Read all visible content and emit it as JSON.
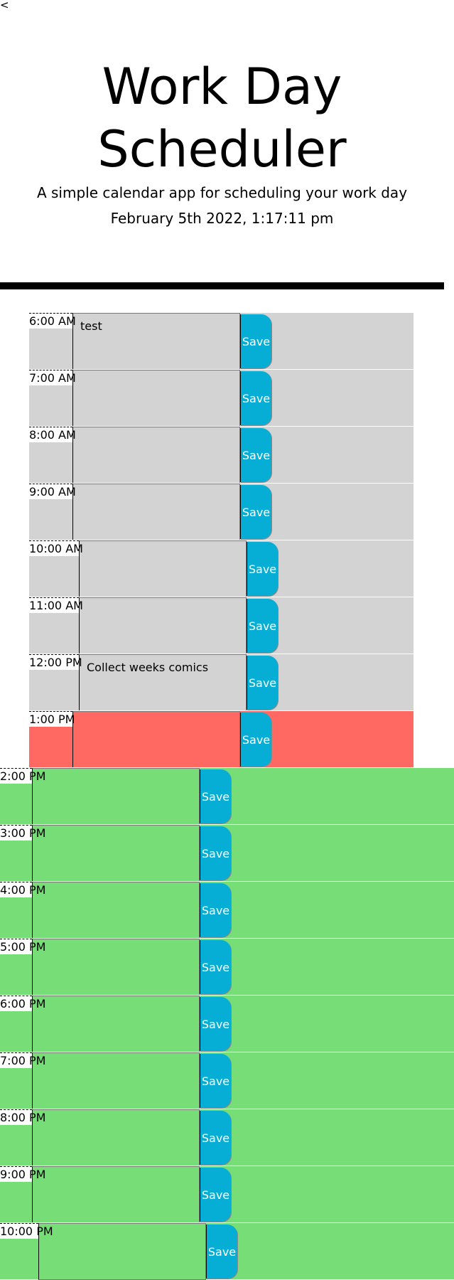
{
  "header": {
    "back": "<",
    "title": "Work Day Scheduler",
    "subtitle": "A simple calendar app for scheduling your work day",
    "date_time": "February 5th 2022, 1:17:11 pm"
  },
  "save_label": "Save",
  "colors": {
    "past": "#d3d3d3",
    "present": "#ff6961",
    "future": "#77dd77",
    "save": "#06aed5"
  },
  "rows": [
    {
      "hour": "6:00 AM",
      "text": "test",
      "state": "past"
    },
    {
      "hour": "7:00 AM",
      "text": "",
      "state": "past"
    },
    {
      "hour": "8:00 AM",
      "text": "",
      "state": "past"
    },
    {
      "hour": "9:00 AM",
      "text": "",
      "state": "past"
    },
    {
      "hour": "10:00 AM",
      "text": "",
      "state": "past"
    },
    {
      "hour": "11:00 AM",
      "text": "",
      "state": "past"
    },
    {
      "hour": "12:00 PM",
      "text": "Collect weeks comics",
      "state": "past"
    },
    {
      "hour": "1:00 PM",
      "text": "",
      "state": "present"
    },
    {
      "hour": "2:00 PM",
      "text": "",
      "state": "future"
    },
    {
      "hour": "3:00 PM",
      "text": "",
      "state": "future"
    },
    {
      "hour": "4:00 PM",
      "text": "",
      "state": "future"
    },
    {
      "hour": "5:00 PM",
      "text": "",
      "state": "future"
    },
    {
      "hour": "6:00 PM",
      "text": "",
      "state": "future"
    },
    {
      "hour": "7:00 PM",
      "text": "",
      "state": "future"
    },
    {
      "hour": "8:00 PM",
      "text": "",
      "state": "future"
    },
    {
      "hour": "9:00 PM",
      "text": "",
      "state": "future"
    },
    {
      "hour": "10:00 PM",
      "text": "",
      "state": "future"
    }
  ]
}
